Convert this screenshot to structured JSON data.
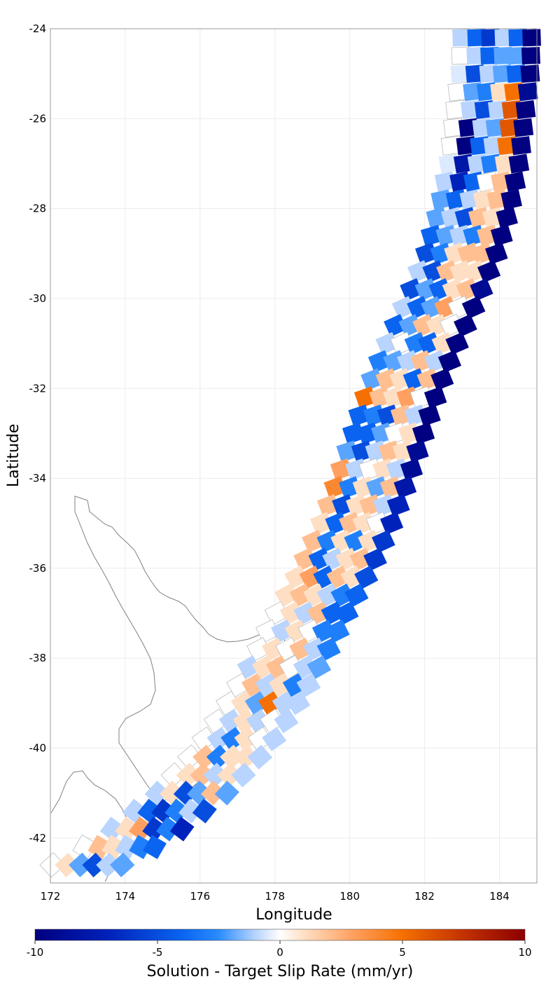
{
  "chart_data": {
    "type": "heatmap",
    "subtype": "fault-patch map",
    "xlabel": "Longitude",
    "ylabel": "Latitude",
    "xlim": [
      172,
      185
    ],
    "ylim": [
      -43,
      -24
    ],
    "xticks": [
      "172",
      "174",
      "176",
      "178",
      "180",
      "182",
      "184"
    ],
    "yticks": [
      "-24",
      "-26",
      "-28",
      "-30",
      "-32",
      "-34",
      "-36",
      "-38",
      "-40",
      "-42"
    ],
    "grid": true,
    "colorbar": {
      "title": "Solution - Target Slip Rate (mm/yr)",
      "range": [
        -10,
        10
      ],
      "tick_labels": [
        "-10",
        "-5",
        "0",
        "5",
        "10"
      ],
      "stops": [
        {
          "value": -10,
          "color": "#000080"
        },
        {
          "value": -7,
          "color": "#0022bb"
        },
        {
          "value": -4,
          "color": "#0a64f0"
        },
        {
          "value": -2.5,
          "color": "#2a8cff"
        },
        {
          "value": -1,
          "color": "#b8d4ff"
        },
        {
          "value": 0,
          "color": "#ffffff"
        },
        {
          "value": 1.2,
          "color": "#ffd8b8"
        },
        {
          "value": 3,
          "color": "#ffa060"
        },
        {
          "value": 5,
          "color": "#f57000"
        },
        {
          "value": 7.5,
          "color": "#c23200"
        },
        {
          "value": 10,
          "color": "#8b0000"
        }
      ]
    },
    "coastline_color": "#808080",
    "profile_comment_free": true,
    "trench_profile": [
      {
        "lat": -24.0,
        "lon": 183.95
      },
      {
        "lat": -25.0,
        "lon": 183.9
      },
      {
        "lat": -26.0,
        "lon": 183.75
      },
      {
        "lat": -27.0,
        "lon": 183.6
      },
      {
        "lat": -28.0,
        "lon": 183.35
      },
      {
        "lat": -29.0,
        "lon": 183.0
      },
      {
        "lat": -30.0,
        "lon": 182.5
      },
      {
        "lat": -31.0,
        "lon": 181.95
      },
      {
        "lat": -32.0,
        "lon": 181.45
      },
      {
        "lat": -33.0,
        "lon": 181.05
      },
      {
        "lat": -34.0,
        "lon": 180.65
      },
      {
        "lat": -35.0,
        "lon": 180.2
      },
      {
        "lat": -36.0,
        "lon": 179.65
      },
      {
        "lat": -37.0,
        "lon": 179.0
      },
      {
        "lat": -38.0,
        "lon": 178.4
      },
      {
        "lat": -39.0,
        "lon": 177.7
      },
      {
        "lat": -40.0,
        "lon": 176.9
      },
      {
        "lat": -41.0,
        "lon": 175.8
      },
      {
        "lat": -42.0,
        "lon": 174.3
      },
      {
        "lat": -42.6,
        "lon": 173.0
      }
    ],
    "band_offsets": [
      -0.95,
      -0.55,
      -0.18,
      0.18,
      0.55,
      0.92
    ],
    "patch_rows": [
      [
        -24.2,
        [
          -1,
          -4,
          -6,
          -1,
          -4,
          -10
        ]
      ],
      [
        -24.6,
        [
          0,
          -1,
          -4,
          -2,
          -2,
          -10
        ]
      ],
      [
        -25.0,
        [
          -0.5,
          -5,
          -1,
          -2,
          -4,
          -10
        ]
      ],
      [
        -25.4,
        [
          0,
          -2,
          -3,
          1,
          5,
          -9
        ]
      ],
      [
        -25.8,
        [
          0,
          -1,
          -5,
          -1,
          6,
          -10
        ]
      ],
      [
        -26.2,
        [
          0,
          -10,
          -1,
          -2,
          6,
          -10
        ]
      ],
      [
        -26.6,
        [
          0,
          -10,
          -4,
          -1,
          5,
          -10
        ]
      ],
      [
        -27.0,
        [
          -0.5,
          -8,
          -1,
          -3,
          1,
          -10
        ]
      ],
      [
        -27.4,
        [
          -1,
          -7,
          -4,
          0,
          2,
          -10
        ]
      ],
      [
        -27.8,
        [
          -2,
          -4,
          -1,
          1,
          2,
          -10
        ]
      ],
      [
        -28.2,
        [
          -2,
          -1,
          -5,
          2,
          1,
          -10
        ]
      ],
      [
        -28.6,
        [
          -4,
          -2,
          -1,
          -3,
          2,
          -10
        ]
      ],
      [
        -29.0,
        [
          -5,
          -3,
          1,
          2,
          2,
          -10
        ]
      ],
      [
        -29.4,
        [
          -1,
          -5,
          2,
          1,
          1,
          -10
        ]
      ],
      [
        -29.8,
        [
          -5,
          -2,
          -4,
          1,
          2,
          -9
        ]
      ],
      [
        -30.2,
        [
          -1,
          -4,
          -2,
          3,
          0,
          -10
        ]
      ],
      [
        -30.6,
        [
          -4,
          -2,
          2,
          1,
          0,
          -10
        ]
      ],
      [
        -31.0,
        [
          -1,
          0,
          -3,
          -4,
          1,
          -10
        ]
      ],
      [
        -31.4,
        [
          -3,
          -2,
          -1,
          2,
          -1,
          -10
        ]
      ],
      [
        -31.8,
        [
          -2,
          2,
          1,
          -4,
          2,
          -10
        ]
      ],
      [
        -32.2,
        [
          5,
          2,
          1,
          3,
          0,
          -10
        ]
      ],
      [
        -32.6,
        [
          -4,
          -3,
          -5,
          2,
          -1,
          -10
        ]
      ],
      [
        -33.0,
        [
          -4,
          -4,
          -2,
          0,
          1,
          -10
        ]
      ],
      [
        -33.4,
        [
          -2,
          -5,
          -1,
          2,
          1,
          -9
        ]
      ],
      [
        -33.8,
        [
          3,
          -1,
          0,
          1,
          -1,
          -9
        ]
      ],
      [
        -34.2,
        [
          4,
          -3,
          1,
          -2,
          2,
          -8
        ]
      ],
      [
        -34.6,
        [
          2,
          -5,
          1,
          2,
          -1,
          -7
        ]
      ],
      [
        -35.0,
        [
          1,
          -4,
          2,
          1,
          0,
          -7
        ]
      ],
      [
        -35.4,
        [
          2,
          -3,
          1,
          -3,
          1,
          -6
        ]
      ],
      [
        -35.8,
        [
          2,
          -4,
          -1,
          1,
          2,
          -6
        ]
      ],
      [
        -36.2,
        [
          1,
          3,
          -4,
          2,
          1,
          -5
        ]
      ],
      [
        -36.6,
        [
          1,
          2,
          1,
          -1,
          -3,
          -4
        ]
      ],
      [
        -37.0,
        [
          0,
          1,
          -1,
          2,
          -4,
          -4
        ]
      ],
      [
        -37.4,
        [
          0,
          -1,
          1,
          0,
          -3,
          -3
        ]
      ],
      [
        -37.8,
        [
          0,
          1,
          0,
          2,
          -1,
          -3
        ]
      ],
      [
        -38.2,
        [
          -1,
          1,
          2,
          0,
          -1,
          -2
        ]
      ],
      [
        -38.6,
        [
          0,
          2,
          -1,
          1,
          -3,
          -1
        ]
      ],
      [
        -39.0,
        [
          0,
          1,
          -2,
          5,
          -1,
          -1
        ]
      ],
      [
        -39.4,
        [
          0,
          -1,
          1,
          -1,
          0,
          -1
        ]
      ],
      [
        -39.8,
        [
          0,
          -1,
          -3,
          1,
          0,
          -1
        ]
      ],
      [
        -40.2,
        [
          0,
          2,
          -3,
          1,
          1,
          -1
        ]
      ],
      [
        -40.6,
        [
          0,
          1,
          2,
          -1,
          1,
          -1
        ]
      ],
      [
        -41.0,
        [
          -1,
          1,
          -5,
          -2,
          2,
          -2
        ]
      ],
      [
        -41.4,
        [
          -1,
          -4,
          -6,
          -3,
          -1,
          -5
        ]
      ],
      [
        -41.8,
        [
          -1,
          1,
          3,
          -6,
          -3,
          -7
        ]
      ],
      [
        -42.2,
        [
          0,
          2,
          1,
          -1,
          -3,
          -4
        ]
      ],
      [
        -42.6,
        [
          0,
          1,
          -2,
          -5,
          -1,
          -2
        ]
      ]
    ]
  }
}
